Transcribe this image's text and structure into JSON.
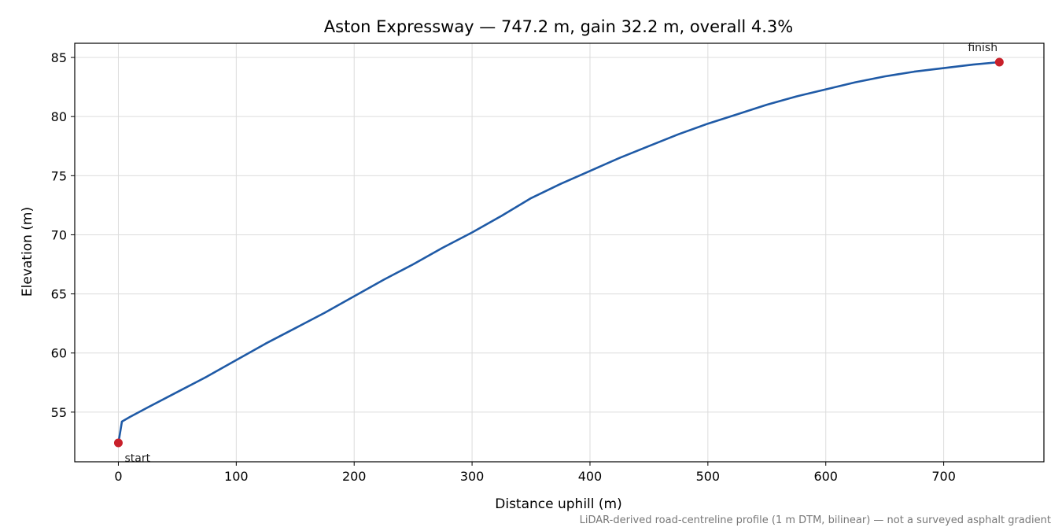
{
  "chart_data": {
    "type": "line",
    "title": "Aston Expressway — 747.2 m, gain 32.2 m, overall 4.3%",
    "xlabel": "Distance uphill (m)",
    "ylabel": "Elevation (m)",
    "footnote": "LiDAR-derived road-centreline profile (1 m DTM, bilinear) — not a surveyed asphalt gradient",
    "xlim": [
      -37,
      785
    ],
    "ylim": [
      50.8,
      86.2
    ],
    "x_ticks": [
      0,
      100,
      200,
      300,
      400,
      500,
      600,
      700
    ],
    "x_tick_labels": [
      "0",
      "100",
      "200",
      "300",
      "400",
      "500",
      "600",
      "700"
    ],
    "y_ticks": [
      55,
      60,
      65,
      70,
      75,
      80,
      85
    ],
    "y_tick_labels": [
      "55",
      "60",
      "65",
      "70",
      "75",
      "80",
      "85"
    ],
    "grid": true,
    "line_color": "#1f5aa6",
    "marker_color": "#c8202a",
    "series": [
      {
        "x": [
          0,
          3,
          10,
          25,
          50,
          75,
          100,
          125,
          150,
          175,
          200,
          225,
          250,
          275,
          300,
          325,
          350,
          375,
          400,
          425,
          450,
          475,
          500,
          525,
          550,
          575,
          600,
          625,
          650,
          675,
          700,
          725,
          747.2
        ],
        "y": [
          52.4,
          54.2,
          54.6,
          55.4,
          56.7,
          58.0,
          59.4,
          60.8,
          62.1,
          63.4,
          64.8,
          66.2,
          67.5,
          68.9,
          70.2,
          71.6,
          73.1,
          74.3,
          75.4,
          76.5,
          77.5,
          78.5,
          79.4,
          80.2,
          81.0,
          81.7,
          82.3,
          82.9,
          83.4,
          83.8,
          84.1,
          84.4,
          84.6
        ]
      }
    ],
    "annotations": [
      {
        "label": "start",
        "x": 0,
        "y": 52.4
      },
      {
        "label": "finish",
        "x": 747.2,
        "y": 84.6
      }
    ]
  }
}
